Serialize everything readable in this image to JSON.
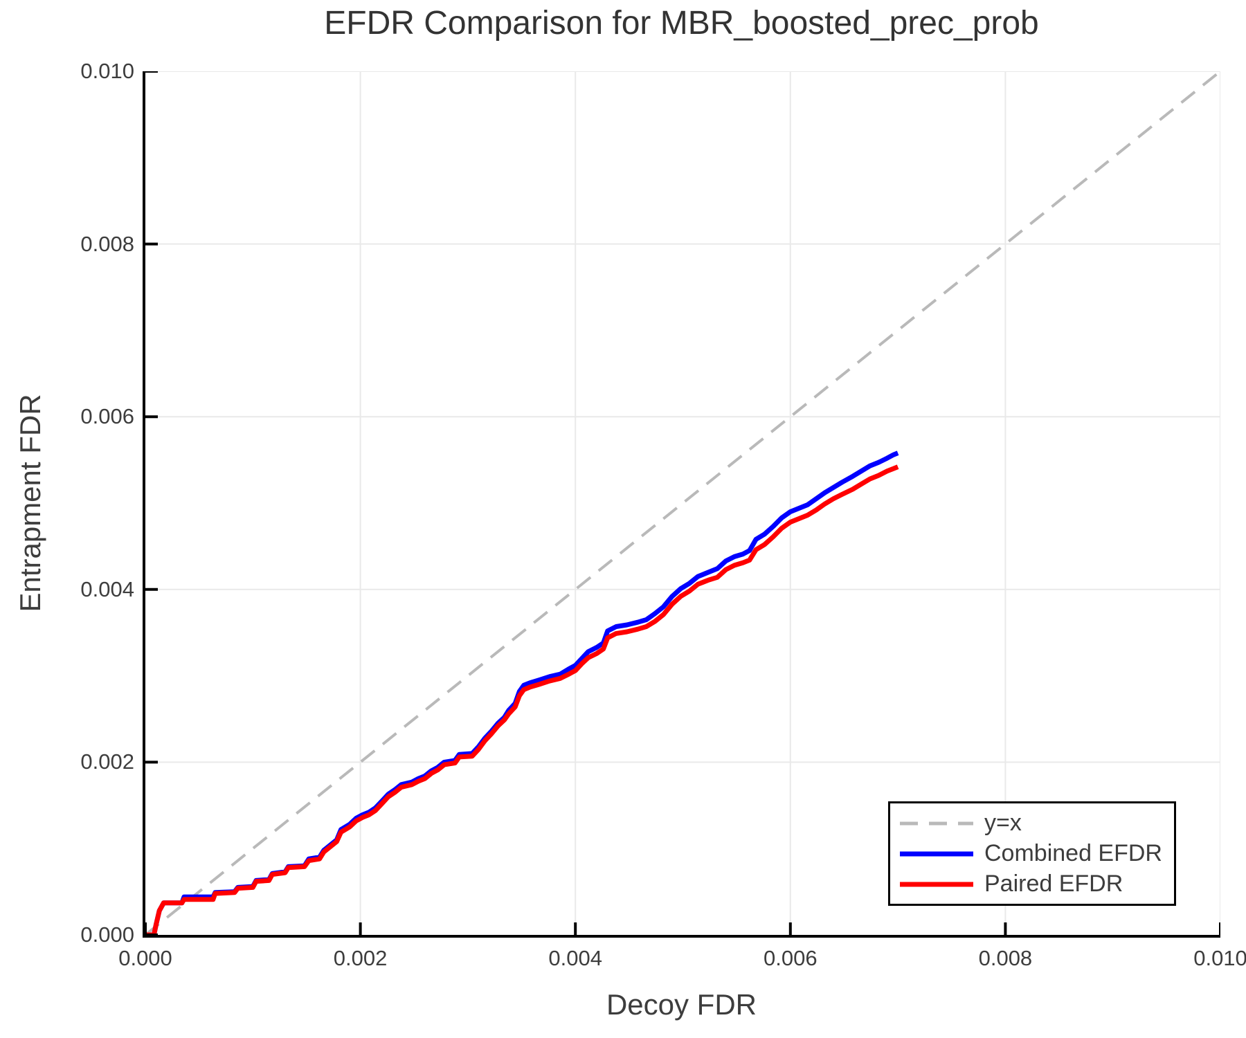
{
  "title": "EFDR Comparison for MBR_boosted_prec_prob",
  "axes": {
    "xlabel": "Decoy FDR",
    "ylabel": "Entrapment FDR",
    "x_tick_values": [
      0,
      0.002,
      0.004,
      0.006,
      0.008,
      0.01
    ],
    "x_tick_labels": [
      "0.000",
      "0.002",
      "0.004",
      "0.006",
      "0.008",
      "0.010"
    ],
    "y_tick_values": [
      0,
      0.002,
      0.004,
      0.006,
      0.008,
      0.01
    ],
    "y_tick_labels": [
      "0.000",
      "0.002",
      "0.004",
      "0.006",
      "0.008",
      "0.010"
    ]
  },
  "colors": {
    "grid": "#e9e9e9",
    "diagonal": "#b9b9b9",
    "combined": "#0000ff",
    "paired": "#ff0000",
    "text": "#3d3d3d",
    "spine": "#000000"
  },
  "legend": {
    "entries": [
      {
        "label": "y=x",
        "style": "dashed",
        "color": "#b9b9b9"
      },
      {
        "label": "Combined EFDR",
        "style": "solid",
        "color": "#0000ff"
      },
      {
        "label": "Paired EFDR",
        "style": "solid",
        "color": "#ff0000"
      }
    ]
  },
  "chart_data": {
    "type": "line",
    "title": "EFDR Comparison for MBR_boosted_prec_prob",
    "xlabel": "Decoy FDR",
    "ylabel": "Entrapment FDR",
    "xlim": [
      0,
      0.01
    ],
    "ylim": [
      0,
      0.01
    ],
    "grid": true,
    "legend_position": "lower right",
    "reference_line": {
      "label": "y=x",
      "from": [
        0,
        0
      ],
      "to": [
        0.01,
        0.01
      ],
      "style": "dashed",
      "color": "#b9b9b9"
    },
    "series": [
      {
        "name": "Combined EFDR",
        "color": "#0000ff",
        "points": [
          [
            0,
            0
          ],
          [
            8e-05,
            0
          ],
          [
            0.0001,
            0.00012
          ],
          [
            0.00013,
            0.00028
          ],
          [
            0.00017,
            0.00037
          ],
          [
            0.00034,
            0.00037
          ],
          [
            0.00036,
            0.00044
          ],
          [
            0.00063,
            0.00044
          ],
          [
            0.00065,
            0.00049
          ],
          [
            0.00083,
            0.0005
          ],
          [
            0.00086,
            0.00055
          ],
          [
            0.001,
            0.00056
          ],
          [
            0.00103,
            0.00063
          ],
          [
            0.00115,
            0.00064
          ],
          [
            0.00118,
            0.00071
          ],
          [
            0.0013,
            0.00073
          ],
          [
            0.00133,
            0.00079
          ],
          [
            0.00148,
            0.0008
          ],
          [
            0.00152,
            0.00088
          ],
          [
            0.00162,
            0.0009
          ],
          [
            0.00166,
            0.00098
          ],
          [
            0.00172,
            0.00104
          ],
          [
            0.00178,
            0.0011
          ],
          [
            0.00182,
            0.00122
          ],
          [
            0.0019,
            0.00128
          ],
          [
            0.00196,
            0.00135
          ],
          [
            0.00202,
            0.00139
          ],
          [
            0.00208,
            0.00142
          ],
          [
            0.00214,
            0.00147
          ],
          [
            0.0022,
            0.00155
          ],
          [
            0.00226,
            0.00163
          ],
          [
            0.00232,
            0.00168
          ],
          [
            0.00238,
            0.00174
          ],
          [
            0.00248,
            0.00177
          ],
          [
            0.00254,
            0.00181
          ],
          [
            0.0026,
            0.00184
          ],
          [
            0.00266,
            0.0019
          ],
          [
            0.00272,
            0.00194
          ],
          [
            0.00278,
            0.002
          ],
          [
            0.00288,
            0.00202
          ],
          [
            0.00292,
            0.00209
          ],
          [
            0.00304,
            0.0021
          ],
          [
            0.0031,
            0.00218
          ],
          [
            0.00316,
            0.00228
          ],
          [
            0.00322,
            0.00236
          ],
          [
            0.00328,
            0.00245
          ],
          [
            0.00334,
            0.00252
          ],
          [
            0.00338,
            0.0026
          ],
          [
            0.00344,
            0.00268
          ],
          [
            0.00348,
            0.00282
          ],
          [
            0.00352,
            0.00289
          ],
          [
            0.00358,
            0.00292
          ],
          [
            0.00366,
            0.00295
          ],
          [
            0.00376,
            0.00299
          ],
          [
            0.00386,
            0.00302
          ],
          [
            0.00394,
            0.00308
          ],
          [
            0.004,
            0.00312
          ],
          [
            0.00406,
            0.0032
          ],
          [
            0.00412,
            0.00328
          ],
          [
            0.0042,
            0.00333
          ],
          [
            0.00426,
            0.00338
          ],
          [
            0.0043,
            0.00352
          ],
          [
            0.00438,
            0.00357
          ],
          [
            0.00448,
            0.00359
          ],
          [
            0.00458,
            0.00362
          ],
          [
            0.00466,
            0.00365
          ],
          [
            0.00474,
            0.00372
          ],
          [
            0.00482,
            0.0038
          ],
          [
            0.0049,
            0.00392
          ],
          [
            0.00498,
            0.00401
          ],
          [
            0.00506,
            0.00407
          ],
          [
            0.00514,
            0.00415
          ],
          [
            0.00524,
            0.0042
          ],
          [
            0.00532,
            0.00424
          ],
          [
            0.0054,
            0.00433
          ],
          [
            0.00548,
            0.00438
          ],
          [
            0.00556,
            0.00441
          ],
          [
            0.00562,
            0.00445
          ],
          [
            0.00568,
            0.00458
          ],
          [
            0.00576,
            0.00464
          ],
          [
            0.00584,
            0.00473
          ],
          [
            0.00592,
            0.00483
          ],
          [
            0.006,
            0.0049
          ],
          [
            0.00608,
            0.00494
          ],
          [
            0.00616,
            0.00498
          ],
          [
            0.00624,
            0.00505
          ],
          [
            0.00632,
            0.00512
          ],
          [
            0.0064,
            0.00518
          ],
          [
            0.00648,
            0.00524
          ],
          [
            0.00658,
            0.00531
          ],
          [
            0.00666,
            0.00537
          ],
          [
            0.00674,
            0.00543
          ],
          [
            0.00682,
            0.00547
          ],
          [
            0.0069,
            0.00552
          ],
          [
            0.00696,
            0.00556
          ],
          [
            0.007,
            0.00558
          ]
        ]
      },
      {
        "name": "Paired EFDR",
        "color": "#ff0000",
        "points": [
          [
            0,
            0
          ],
          [
            8e-05,
            0
          ],
          [
            0.0001,
            0.00012
          ],
          [
            0.00013,
            0.00028
          ],
          [
            0.00017,
            0.00037
          ],
          [
            0.00034,
            0.00037
          ],
          [
            0.00036,
            0.00041
          ],
          [
            0.00063,
            0.00041
          ],
          [
            0.00065,
            0.00048
          ],
          [
            0.00083,
            0.00049
          ],
          [
            0.00086,
            0.00054
          ],
          [
            0.001,
            0.00055
          ],
          [
            0.00103,
            0.00062
          ],
          [
            0.00115,
            0.00063
          ],
          [
            0.00118,
            0.0007
          ],
          [
            0.0013,
            0.00072
          ],
          [
            0.00133,
            0.00078
          ],
          [
            0.00148,
            0.00079
          ],
          [
            0.00152,
            0.00086
          ],
          [
            0.00162,
            0.00088
          ],
          [
            0.00166,
            0.00096
          ],
          [
            0.00172,
            0.00102
          ],
          [
            0.00178,
            0.00108
          ],
          [
            0.00182,
            0.00119
          ],
          [
            0.0019,
            0.00125
          ],
          [
            0.00196,
            0.00132
          ],
          [
            0.00202,
            0.00136
          ],
          [
            0.00208,
            0.00139
          ],
          [
            0.00214,
            0.00144
          ],
          [
            0.0022,
            0.00152
          ],
          [
            0.00226,
            0.0016
          ],
          [
            0.00232,
            0.00165
          ],
          [
            0.00238,
            0.00171
          ],
          [
            0.00248,
            0.00174
          ],
          [
            0.00254,
            0.00178
          ],
          [
            0.0026,
            0.00181
          ],
          [
            0.00266,
            0.00187
          ],
          [
            0.00272,
            0.00191
          ],
          [
            0.00278,
            0.00197
          ],
          [
            0.00288,
            0.00199
          ],
          [
            0.00292,
            0.00206
          ],
          [
            0.00304,
            0.00207
          ],
          [
            0.0031,
            0.00215
          ],
          [
            0.00316,
            0.00225
          ],
          [
            0.00322,
            0.00233
          ],
          [
            0.00328,
            0.00242
          ],
          [
            0.00334,
            0.00249
          ],
          [
            0.00338,
            0.00256
          ],
          [
            0.00344,
            0.00264
          ],
          [
            0.00348,
            0.00277
          ],
          [
            0.00352,
            0.00284
          ],
          [
            0.00358,
            0.00287
          ],
          [
            0.00366,
            0.0029
          ],
          [
            0.00376,
            0.00294
          ],
          [
            0.00386,
            0.00297
          ],
          [
            0.00394,
            0.00302
          ],
          [
            0.004,
            0.00306
          ],
          [
            0.00406,
            0.00314
          ],
          [
            0.00412,
            0.00321
          ],
          [
            0.0042,
            0.00326
          ],
          [
            0.00426,
            0.00331
          ],
          [
            0.0043,
            0.00344
          ],
          [
            0.00438,
            0.00349
          ],
          [
            0.00448,
            0.00351
          ],
          [
            0.00458,
            0.00354
          ],
          [
            0.00466,
            0.00357
          ],
          [
            0.00474,
            0.00363
          ],
          [
            0.00482,
            0.00371
          ],
          [
            0.0049,
            0.00383
          ],
          [
            0.00498,
            0.00392
          ],
          [
            0.00506,
            0.00398
          ],
          [
            0.00514,
            0.00406
          ],
          [
            0.00524,
            0.00411
          ],
          [
            0.00532,
            0.00414
          ],
          [
            0.0054,
            0.00423
          ],
          [
            0.00548,
            0.00428
          ],
          [
            0.00556,
            0.00431
          ],
          [
            0.00562,
            0.00434
          ],
          [
            0.00568,
            0.00446
          ],
          [
            0.00576,
            0.00452
          ],
          [
            0.00584,
            0.00461
          ],
          [
            0.00592,
            0.00471
          ],
          [
            0.006,
            0.00478
          ],
          [
            0.00608,
            0.00482
          ],
          [
            0.00616,
            0.00486
          ],
          [
            0.00624,
            0.00492
          ],
          [
            0.00632,
            0.00499
          ],
          [
            0.0064,
            0.00505
          ],
          [
            0.00648,
            0.0051
          ],
          [
            0.00658,
            0.00516
          ],
          [
            0.00666,
            0.00522
          ],
          [
            0.00674,
            0.00528
          ],
          [
            0.00682,
            0.00532
          ],
          [
            0.0069,
            0.00537
          ],
          [
            0.00696,
            0.0054
          ],
          [
            0.007,
            0.00542
          ]
        ]
      }
    ]
  }
}
